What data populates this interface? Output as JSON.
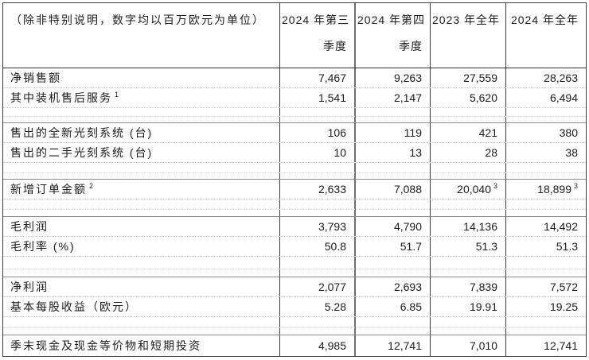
{
  "table": {
    "note": "（除非特别说明，数字均以百万欧元为单位）",
    "columns": [
      {
        "line1": "2024 年第三",
        "line2": "季度"
      },
      {
        "line1": "2024 年第四",
        "line2": "季度"
      },
      {
        "line1": "2023 年全年",
        "line2": ""
      },
      {
        "line1": "2024 年全年",
        "line2": ""
      }
    ],
    "groups": [
      {
        "rows": [
          {
            "label": "净销售额",
            "values": [
              "7,467",
              "9,263",
              "27,559",
              "28,263"
            ]
          },
          {
            "label": "其中装机售后服务",
            "label_sup": "1",
            "values": [
              "1,541",
              "2,147",
              "5,620",
              "6,494"
            ]
          }
        ]
      },
      {
        "rows": [
          {
            "label": "售出的全新光刻系统 (台)",
            "values": [
              "106",
              "119",
              "421",
              "380"
            ]
          },
          {
            "label": "售出的二手光刻系统 (台)",
            "values": [
              "10",
              "13",
              "28",
              "38"
            ]
          }
        ]
      },
      {
        "rows": [
          {
            "label": "新增订单金额",
            "label_sup": "2",
            "values": [
              "2,633",
              "7,088",
              "20,040",
              "18,899"
            ],
            "value_sups": [
              "",
              "",
              "3",
              "3"
            ]
          }
        ]
      },
      {
        "rows": [
          {
            "label": "毛利润",
            "values": [
              "3,793",
              "4,790",
              "14,136",
              "14,492"
            ]
          },
          {
            "label": "毛利率 (%)",
            "values": [
              "50.8",
              "51.7",
              "51.3",
              "51.3"
            ]
          }
        ]
      },
      {
        "rows": [
          {
            "label": "净利润",
            "values": [
              "2,077",
              "2,693",
              "7,839",
              "7,572"
            ]
          },
          {
            "label": "基本每股收益（欧元）",
            "values": [
              "5.28",
              "6.85",
              "19.91",
              "19.25"
            ]
          }
        ]
      },
      {
        "rows": [
          {
            "label": "季末现金及现金等价物和短期投资",
            "values": [
              "4,985",
              "12,741",
              "7,010",
              "12,741"
            ]
          }
        ]
      }
    ]
  }
}
